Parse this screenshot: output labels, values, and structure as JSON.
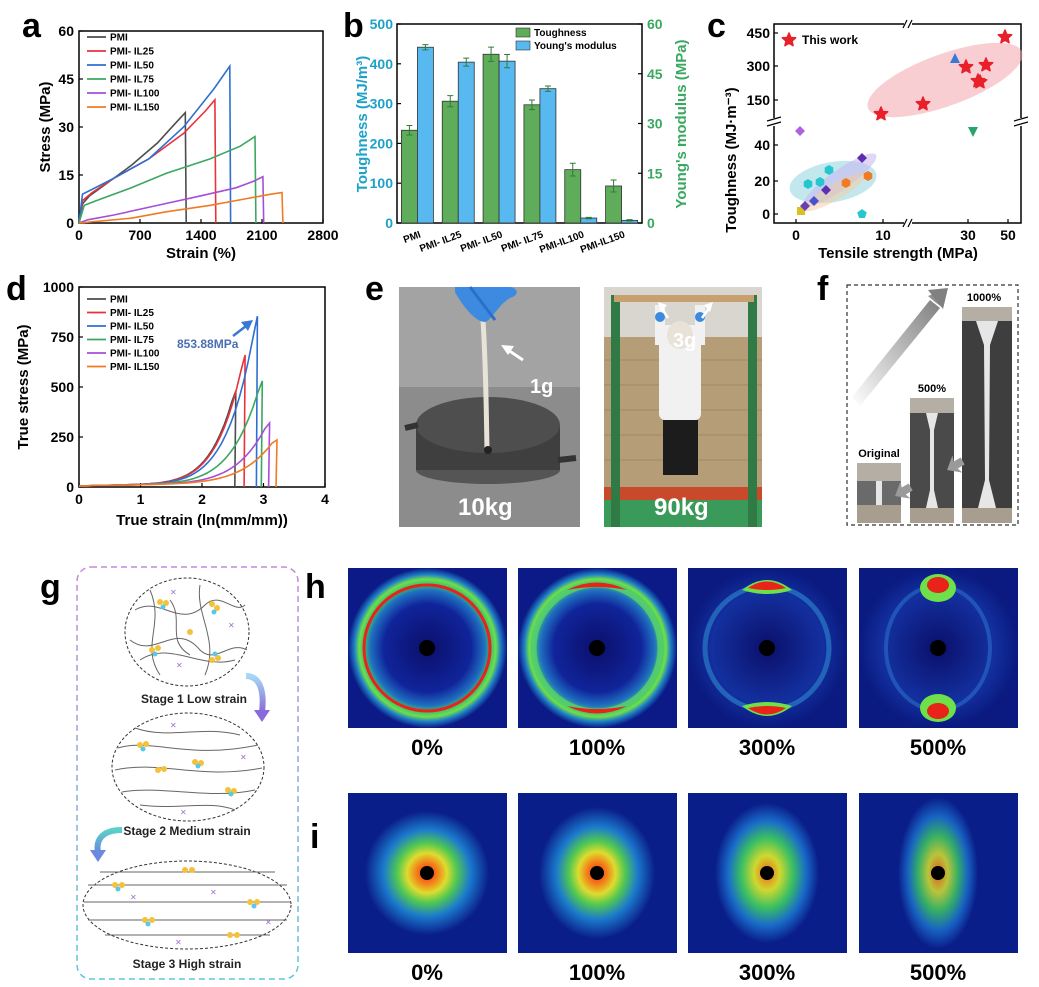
{
  "panels": {
    "a": "a",
    "b": "b",
    "c": "c",
    "d": "d",
    "e": "e",
    "f": "f",
    "g": "g",
    "h": "h",
    "i": "i"
  },
  "chart_data": [
    {
      "panel": "a",
      "type": "line",
      "xlabel": "Strain (%)",
      "ylabel": "Stress (MPa)",
      "xlim": [
        0,
        2800
      ],
      "ylim": [
        0,
        60
      ],
      "xticks": [
        0,
        700,
        1400,
        2100,
        2800
      ],
      "yticks": [
        0,
        15,
        30,
        45,
        60
      ],
      "legend": [
        "PMI",
        "PMI- IL25",
        "PMI- IL50",
        "PMI- IL75",
        "PMI- IL100",
        "PMI- IL150"
      ],
      "series": [
        {
          "name": "PMI",
          "color": "#4d4d4d",
          "points": [
            [
              0,
              0
            ],
            [
              40,
              6
            ],
            [
              120,
              8.5
            ],
            [
              300,
              12
            ],
            [
              600,
              18
            ],
            [
              900,
              25
            ],
            [
              1100,
              31
            ],
            [
              1220,
              34.5
            ],
            [
              1230,
              0
            ]
          ]
        },
        {
          "name": "PMI- IL25",
          "color": "#e8323c",
          "points": [
            [
              0,
              0
            ],
            [
              40,
              7
            ],
            [
              150,
              9.5
            ],
            [
              400,
              14
            ],
            [
              800,
              20
            ],
            [
              1200,
              28
            ],
            [
              1450,
              35
            ],
            [
              1560,
              38.5
            ],
            [
              1570,
              0
            ]
          ]
        },
        {
          "name": "PMI- IL50",
          "color": "#2e6fcf",
          "points": [
            [
              0,
              0
            ],
            [
              40,
              9
            ],
            [
              150,
              10.5
            ],
            [
              400,
              14
            ],
            [
              800,
              20
            ],
            [
              1200,
              30
            ],
            [
              1550,
              42
            ],
            [
              1730,
              49
            ],
            [
              1740,
              0
            ]
          ]
        },
        {
          "name": "PMI- IL75",
          "color": "#3aa860",
          "points": [
            [
              0,
              0
            ],
            [
              60,
              5.5
            ],
            [
              200,
              7
            ],
            [
              600,
              11
            ],
            [
              1000,
              15.5
            ],
            [
              1500,
              20
            ],
            [
              1850,
              24
            ],
            [
              2020,
              27
            ],
            [
              2030,
              0
            ]
          ]
        },
        {
          "name": "PMI- IL100",
          "color": "#a64fd6",
          "points": [
            [
              0,
              0
            ],
            [
              100,
              1
            ],
            [
              400,
              2.5
            ],
            [
              900,
              5.5
            ],
            [
              1400,
              8.5
            ],
            [
              1800,
              11
            ],
            [
              2000,
              13
            ],
            [
              2110,
              14.5
            ],
            [
              2120,
              0
            ]
          ]
        },
        {
          "name": "PMI- IL150",
          "color": "#f07b22",
          "points": [
            [
              0,
              0
            ],
            [
              200,
              0.5
            ],
            [
              600,
              1.5
            ],
            [
              1000,
              3.5
            ],
            [
              1500,
              5.5
            ],
            [
              1900,
              7.5
            ],
            [
              2200,
              9
            ],
            [
              2330,
              9.5
            ],
            [
              2340,
              0
            ]
          ]
        }
      ]
    },
    {
      "panel": "b",
      "type": "bar",
      "ylabel": "Toughness (MJ/m³)",
      "ylabel2": "Young's modulus (MPa)",
      "ylim": [
        0,
        500
      ],
      "ylim2": [
        0,
        60
      ],
      "yticks": [
        0,
        100,
        200,
        300,
        400,
        500
      ],
      "yticks2": [
        0,
        15,
        30,
        45,
        60
      ],
      "categories": [
        "PMI",
        "PMI- IL25",
        "PMI- IL50",
        "PMI- IL75",
        "PMI-IL100",
        "PMI-IL150"
      ],
      "series": [
        {
          "name": "Toughness",
          "color": "#5fad5a",
          "values": [
            233,
            306,
            424,
            297,
            134,
            93
          ],
          "errors": [
            12,
            14,
            18,
            12,
            16,
            15
          ]
        },
        {
          "name": "Young's modulus",
          "color": "#58b8f0",
          "values": [
            53,
            48.5,
            48.8,
            40.5,
            1.5,
            0.8
          ],
          "errors": [
            0.8,
            1.2,
            2,
            0.8,
            0.2,
            0.2
          ]
        }
      ]
    },
    {
      "panel": "c",
      "type": "scatter",
      "xlabel": "Tensile strength (MPa)",
      "ylabel": "Toughness (MJ·m⁻³)",
      "xticks_low": [
        0,
        10
      ],
      "xticks_high": [
        30,
        50
      ],
      "yticks_low": [
        0,
        20,
        40
      ],
      "yticks_high": [
        150,
        300,
        450
      ],
      "legend": [
        "This work"
      ],
      "this_work": [
        [
          10,
          95
        ],
        [
          16,
          130
        ],
        [
          27,
          300
        ],
        [
          28.5,
          230
        ],
        [
          30,
          300
        ],
        [
          33,
          210
        ],
        [
          47.5,
          420
        ]
      ],
      "other": [
        {
          "x": 0.5,
          "y": 45,
          "color": "#b060e0",
          "shape": "diamond"
        },
        {
          "x": 25,
          "y": 330,
          "color": "#3a78d8",
          "shape": "triangle"
        },
        {
          "x": 26,
          "y": 45,
          "color": "#29a36a",
          "shape": "triangle-down"
        },
        {
          "x": 0.3,
          "y": 2,
          "color": "#d9c21e",
          "shape": "square"
        },
        {
          "x": 0.8,
          "y": 3,
          "color": "#6b3fb0",
          "shape": "diamond"
        },
        {
          "x": 1.2,
          "y": 8,
          "color": "#4a4fd0",
          "shape": "diamond"
        },
        {
          "x": 1.3,
          "y": 17,
          "color": "#26c6cf",
          "shape": "hexagon"
        },
        {
          "x": 2.5,
          "y": 18,
          "color": "#26c6cf",
          "shape": "hexagon"
        },
        {
          "x": 3.5,
          "y": 14,
          "color": "#5a2fb0",
          "shape": "diamond"
        },
        {
          "x": 4,
          "y": 25,
          "color": "#26c6cf",
          "shape": "hexagon"
        },
        {
          "x": 5.8,
          "y": 18,
          "color": "#f07b22",
          "shape": "hexagon"
        },
        {
          "x": 7.7,
          "y": 31,
          "color": "#5a2fb0",
          "shape": "diamond"
        },
        {
          "x": 8.2,
          "y": 22,
          "color": "#f07b22",
          "shape": "hexagon"
        },
        {
          "x": 8,
          "y": 0,
          "color": "#26c6cf",
          "shape": "pentagon"
        }
      ]
    },
    {
      "panel": "d",
      "type": "line",
      "xlabel": "True strain (ln(mm/mm))",
      "ylabel": "True stress (MPa)",
      "xlim": [
        0,
        4
      ],
      "ylim": [
        0,
        1000
      ],
      "xticks": [
        0,
        1,
        2,
        3,
        4
      ],
      "yticks": [
        0,
        250,
        500,
        750,
        1000
      ],
      "annotation": "853.88MPa",
      "legend": [
        "PMI",
        "PMI- IL25",
        "PMI- IL50",
        "PMI- IL75",
        "PMI- IL100",
        "PMI- IL150"
      ],
      "series": [
        {
          "name": "PMI",
          "color": "#4d4d4d",
          "end": [
            2.55,
            480
          ]
        },
        {
          "name": "PMI- IL25",
          "color": "#e8323c",
          "end": [
            2.7,
            660
          ]
        },
        {
          "name": "PMI- IL50",
          "color": "#2e6fcf",
          "end": [
            2.9,
            854
          ]
        },
        {
          "name": "PMI- IL75",
          "color": "#3aa860",
          "end": [
            2.98,
            530
          ]
        },
        {
          "name": "PMI- IL100",
          "color": "#a64fd6",
          "end": [
            3.1,
            320
          ]
        },
        {
          "name": "PMI- IL150",
          "color": "#f07b22",
          "end": [
            3.22,
            235
          ]
        }
      ]
    }
  ],
  "photos": {
    "e_left_label": "10kg",
    "e_left_tag": "1g",
    "e_right_label": "90kg",
    "e_right_tag": "3g",
    "f_original": "Original",
    "f_500": "500%",
    "f_1000": "1000%"
  },
  "stages": {
    "s1": "Stage 1 Low strain",
    "s2": "Stage 2 Medium strain",
    "s3": "Stage 3 High strain"
  },
  "saxs_labels": [
    "0%",
    "100%",
    "300%",
    "500%"
  ],
  "colors": {
    "toughness_axis": "#1ea1c9",
    "modulus_axis": "#3aa860",
    "annotation": "#4a6fb0",
    "this_work": "#e8202a"
  }
}
